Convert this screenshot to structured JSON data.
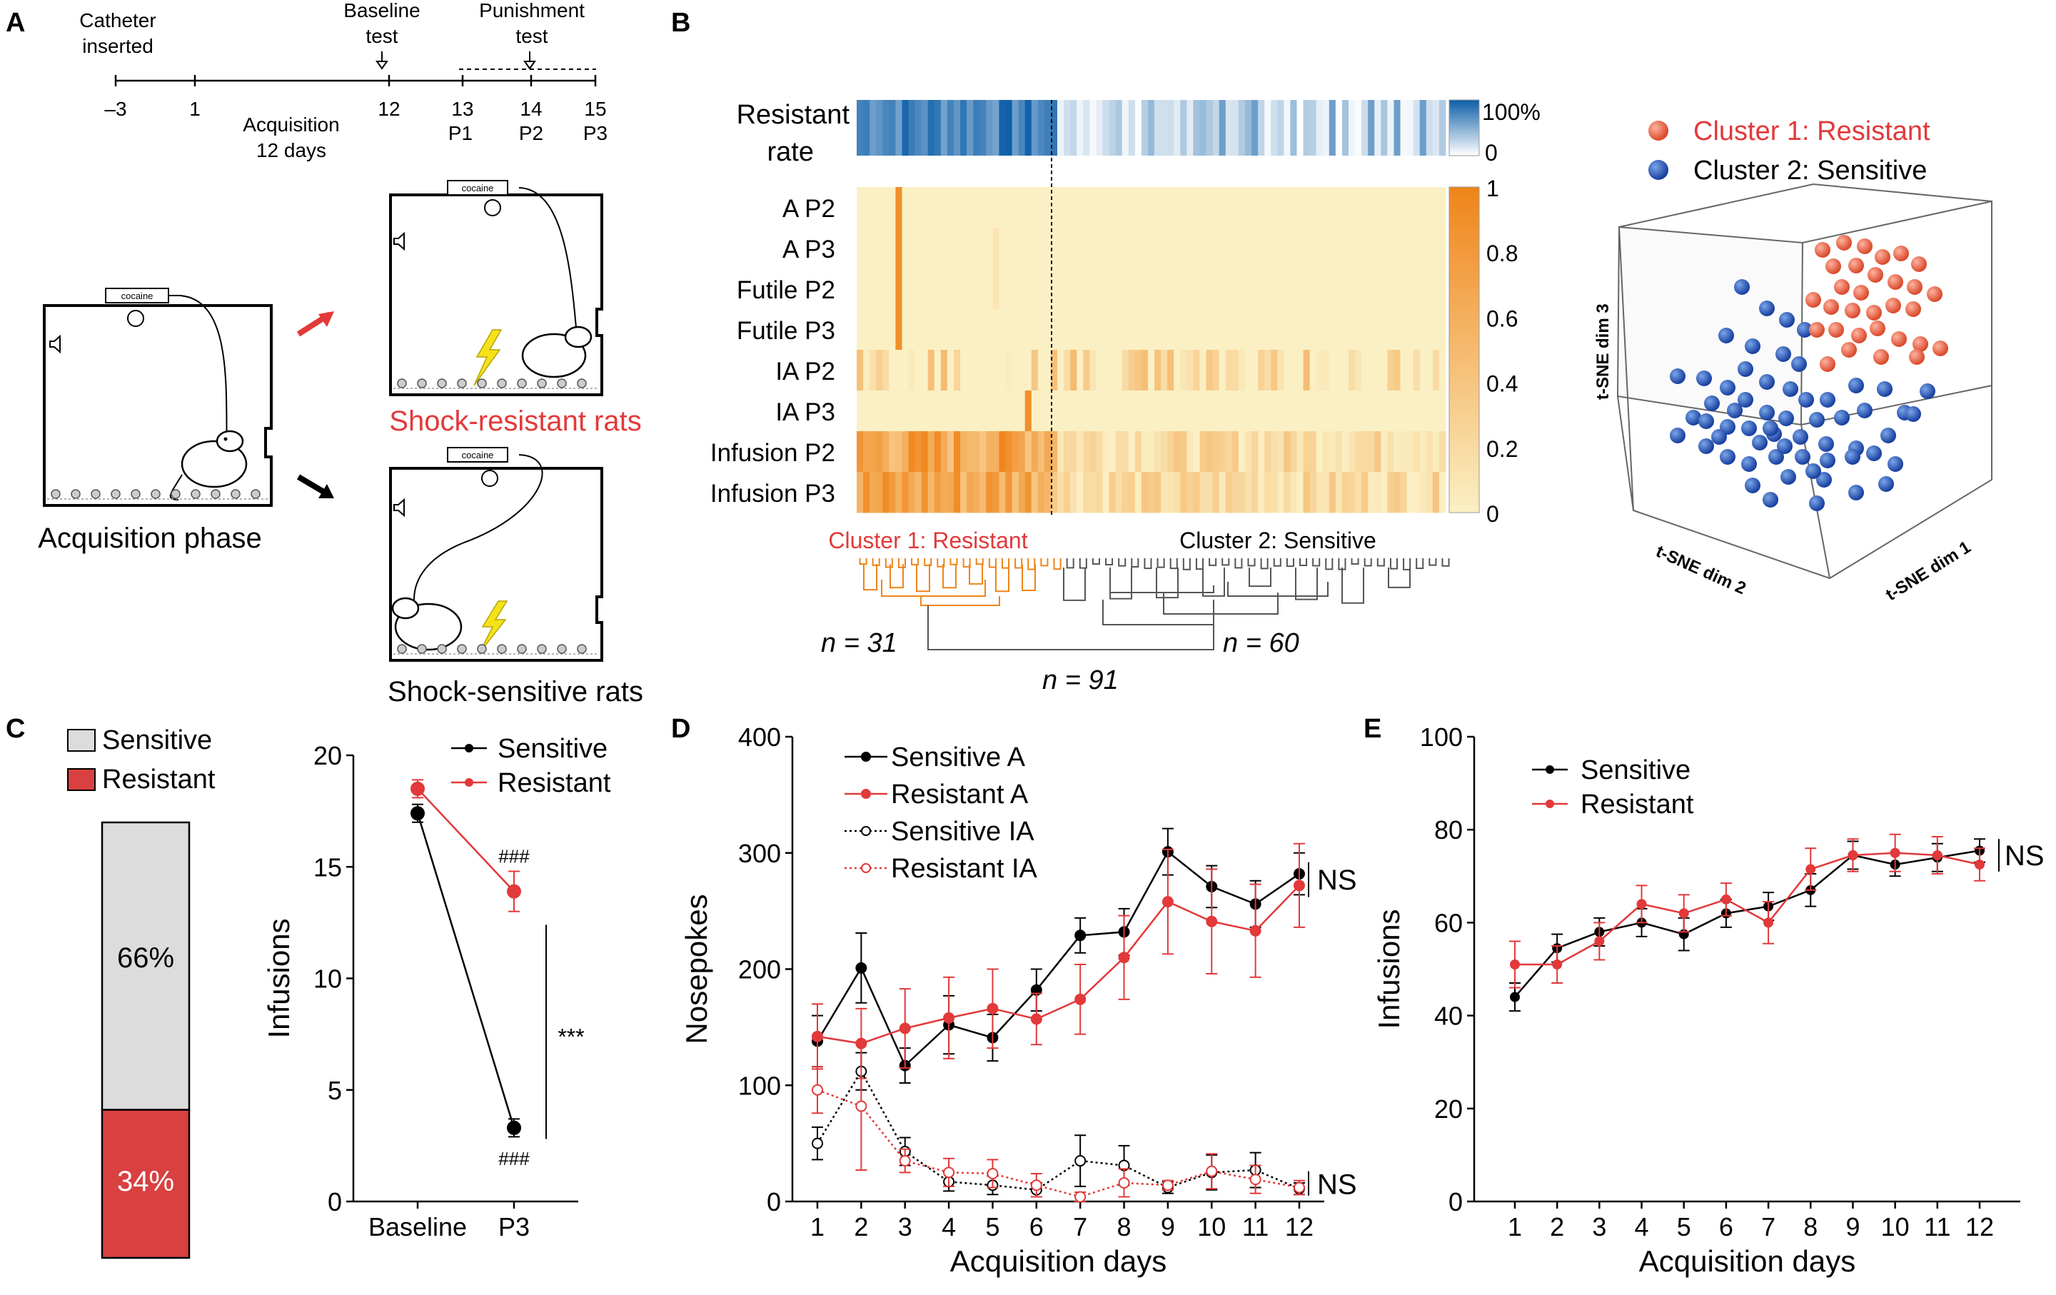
{
  "colors": {
    "sensitive": "#000000",
    "resistant": "#e2393a",
    "blue_dark": "#0d5ea8",
    "orange": "#ef8419",
    "cream": "#fbf0c4",
    "gray_bar": "#dcdcdc",
    "red_bar": "#d94040"
  },
  "panelA": {
    "label": "A",
    "catheter": [
      "Catheter",
      "inserted"
    ],
    "baseline": [
      "Baseline",
      "test"
    ],
    "punishment": [
      "Punishment",
      "test"
    ],
    "ticks": [
      "–3",
      "1",
      "12",
      "13",
      "14",
      "15"
    ],
    "sublabels": [
      "P1",
      "P2",
      "P3"
    ],
    "acquisition": [
      "Acquisition",
      "12 days"
    ],
    "cocaine": "cocaine",
    "acq_phase": "Acquisition phase",
    "resistant_rats": "Shock-resistant rats",
    "sensitive_rats": "Shock-sensitive rats"
  },
  "panelB": {
    "label": "B",
    "rate_label": [
      "Resistant",
      "rate"
    ],
    "rate_scale": [
      "100%",
      "0"
    ],
    "rows": [
      "A P2",
      "A P3",
      "Futile P2",
      "Futile P3",
      "IA P2",
      "IA P3",
      "Infusion P2",
      "Infusion P3"
    ],
    "colorbar_ticks": [
      "1",
      "0.8",
      "0.6",
      "0.4",
      "0.2",
      "0"
    ],
    "cluster1": "Cluster 1: Resistant",
    "cluster2": "Cluster 2: Sensitive",
    "n1": "n = 31",
    "n2": "n = 60",
    "n_total": "n = 91",
    "legend_resistant": "Cluster 1: Resistant",
    "legend_sensitive": "Cluster 2: Sensitive",
    "dim1": "t-SNE dim 1",
    "dim2": "t-SNE dim 2",
    "dim3": "t-SNE dim 3"
  },
  "panelC": {
    "label": "C",
    "legend": [
      "Sensitive",
      "Resistant"
    ],
    "pct_sensitive": "66%",
    "pct_resistant": "34%",
    "line_legend": [
      "Sensitive",
      "Resistant"
    ],
    "sig_hash": "###",
    "sig_star": "***"
  },
  "panelD": {
    "label": "D",
    "ns": "NS"
  },
  "panelE": {
    "label": "E",
    "ns": "NS"
  },
  "chart_data": [
    {
      "id": "C-bar",
      "type": "bar",
      "categories": [
        "Sensitive",
        "Resistant"
      ],
      "values": [
        66,
        34
      ]
    },
    {
      "id": "C-line",
      "type": "line",
      "categories": [
        "Baseline",
        "P3"
      ],
      "ylabel": "Infusions",
      "ylim": [
        0,
        20
      ],
      "yticks": [
        "0",
        "5",
        "10",
        "15",
        "20"
      ],
      "series": [
        {
          "name": "Sensitive",
          "values": [
            17.4,
            3.3
          ],
          "err": [
            0.4,
            0.4
          ]
        },
        {
          "name": "Resistant",
          "values": [
            18.5,
            13.9
          ],
          "err": [
            0.4,
            0.9
          ]
        }
      ]
    },
    {
      "id": "D",
      "type": "line",
      "categories": [
        "1",
        "2",
        "3",
        "4",
        "5",
        "6",
        "7",
        "8",
        "9",
        "10",
        "11",
        "12"
      ],
      "xlabel": "Acquisition days",
      "ylabel": "Nosepokes",
      "ylim": [
        0,
        400
      ],
      "yticks": [
        "0",
        "100",
        "200",
        "300",
        "400"
      ],
      "series": [
        {
          "name": "Sensitive A",
          "values": [
            138,
            201,
            117,
            152,
            141,
            182,
            229,
            232,
            301,
            271,
            256,
            282
          ],
          "err": [
            22,
            30,
            15,
            25,
            20,
            18,
            15,
            20,
            20,
            18,
            20,
            18
          ]
        },
        {
          "name": "Resistant A",
          "values": [
            142,
            136,
            149,
            158,
            166,
            157,
            174,
            210,
            258,
            241,
            233,
            272
          ],
          "err": [
            28,
            30,
            34,
            35,
            34,
            22,
            30,
            36,
            45,
            45,
            40,
            36
          ]
        },
        {
          "name": "Sensitive IA",
          "values": [
            50,
            112,
            43,
            17,
            14,
            10,
            35,
            31,
            12,
            25,
            27,
            11
          ],
          "err": [
            14,
            16,
            12,
            8,
            8,
            6,
            22,
            17,
            5,
            15,
            15,
            5
          ]
        },
        {
          "name": "Resistant IA",
          "values": [
            96,
            82,
            35,
            25,
            24,
            14,
            4,
            16,
            14,
            26,
            19,
            12
          ],
          "err": [
            20,
            55,
            10,
            12,
            12,
            10,
            4,
            12,
            4,
            15,
            12,
            6
          ]
        }
      ]
    },
    {
      "id": "E",
      "type": "line",
      "categories": [
        "1",
        "2",
        "3",
        "4",
        "5",
        "6",
        "7",
        "8",
        "9",
        "10",
        "11",
        "12"
      ],
      "xlabel": "Acquisition days",
      "ylabel": "Infusions",
      "ylim": [
        0,
        100
      ],
      "yticks": [
        "0",
        "20",
        "40",
        "60",
        "80",
        "100"
      ],
      "series": [
        {
          "name": "Sensitive",
          "values": [
            44,
            54.5,
            58,
            60,
            57.5,
            62,
            63.5,
            67,
            74.5,
            72.5,
            74,
            75.5
          ],
          "err": [
            3,
            3,
            3,
            3,
            3.5,
            3,
            3,
            3.5,
            3,
            2.5,
            3,
            2.5
          ]
        },
        {
          "name": "Resistant",
          "values": [
            51,
            51,
            56,
            64,
            62,
            65,
            60,
            71.5,
            74.5,
            75,
            74.5,
            72.5
          ],
          "err": [
            5,
            4,
            4,
            4,
            4,
            3.5,
            4.5,
            4.5,
            3.5,
            4,
            4,
            3.5
          ]
        }
      ]
    }
  ]
}
